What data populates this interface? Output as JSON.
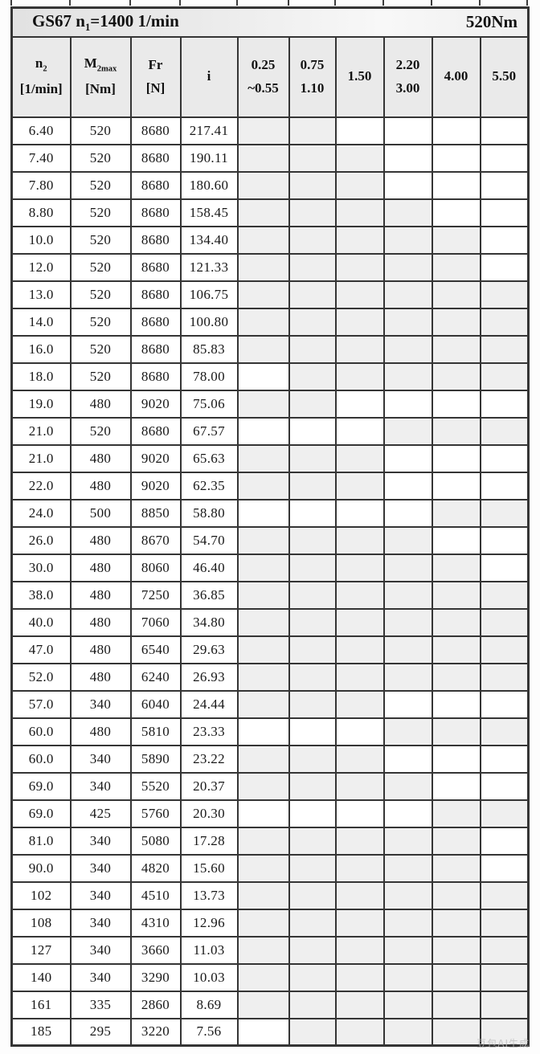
{
  "title": {
    "prefix": "GS67 n",
    "sub": "1",
    "suffix": "=1400 1/min",
    "torque": "520Nm"
  },
  "header": {
    "cols": [
      {
        "line1": "n",
        "sub": "2",
        "line2": "[1/min]"
      },
      {
        "line1": "M",
        "sub": "2max",
        "line2": "[Nm]"
      },
      {
        "line1": "Fr",
        "sub": "",
        "line2": "[N]"
      },
      {
        "line1": "i",
        "sub": "",
        "line2": ""
      },
      {
        "line1": "0.25",
        "sub": "",
        "line2": "~0.55"
      },
      {
        "line1": "0.75",
        "sub": "",
        "line2": "1.10"
      },
      {
        "line1": "1.50",
        "sub": "",
        "line2": ""
      },
      {
        "line1": "2.20",
        "sub": "",
        "line2": "3.00"
      },
      {
        "line1": "4.00",
        "sub": "",
        "line2": ""
      },
      {
        "line1": "5.50",
        "sub": "",
        "line2": ""
      }
    ]
  },
  "rows": [
    {
      "n2": "6.40",
      "m2max": "520",
      "fr": "8680",
      "i": "217.41",
      "avail": [
        1,
        1,
        0,
        0,
        0,
        0
      ]
    },
    {
      "n2": "7.40",
      "m2max": "520",
      "fr": "8680",
      "i": "190.11",
      "avail": [
        1,
        1,
        1,
        0,
        0,
        0
      ]
    },
    {
      "n2": "7.80",
      "m2max": "520",
      "fr": "8680",
      "i": "180.60",
      "avail": [
        1,
        1,
        1,
        0,
        0,
        0
      ]
    },
    {
      "n2": "8.80",
      "m2max": "520",
      "fr": "8680",
      "i": "158.45",
      "avail": [
        1,
        1,
        1,
        1,
        0,
        0
      ]
    },
    {
      "n2": "10.0",
      "m2max": "520",
      "fr": "8680",
      "i": "134.40",
      "avail": [
        1,
        1,
        1,
        1,
        1,
        0
      ]
    },
    {
      "n2": "12.0",
      "m2max": "520",
      "fr": "8680",
      "i": "121.33",
      "avail": [
        1,
        1,
        1,
        1,
        1,
        0
      ]
    },
    {
      "n2": "13.0",
      "m2max": "520",
      "fr": "8680",
      "i": "106.75",
      "avail": [
        1,
        1,
        1,
        1,
        1,
        1
      ]
    },
    {
      "n2": "14.0",
      "m2max": "520",
      "fr": "8680",
      "i": "100.80",
      "avail": [
        1,
        1,
        1,
        1,
        1,
        1
      ]
    },
    {
      "n2": "16.0",
      "m2max": "520",
      "fr": "8680",
      "i": "85.83",
      "avail": [
        1,
        1,
        1,
        1,
        1,
        1
      ]
    },
    {
      "n2": "18.0",
      "m2max": "520",
      "fr": "8680",
      "i": "78.00",
      "avail": [
        0,
        1,
        1,
        1,
        1,
        1
      ]
    },
    {
      "n2": "19.0",
      "m2max": "480",
      "fr": "9020",
      "i": "75.06",
      "avail": [
        1,
        1,
        0,
        0,
        0,
        0
      ]
    },
    {
      "n2": "21.0",
      "m2max": "520",
      "fr": "8680",
      "i": "67.57",
      "avail": [
        0,
        0,
        0,
        1,
        1,
        1
      ]
    },
    {
      "n2": "21.0",
      "m2max": "480",
      "fr": "9020",
      "i": "65.63",
      "avail": [
        1,
        1,
        1,
        0,
        0,
        0
      ]
    },
    {
      "n2": "22.0",
      "m2max": "480",
      "fr": "9020",
      "i": "62.35",
      "avail": [
        1,
        1,
        1,
        0,
        0,
        0
      ]
    },
    {
      "n2": "24.0",
      "m2max": "500",
      "fr": "8850",
      "i": "58.80",
      "avail": [
        0,
        0,
        0,
        0,
        1,
        1
      ]
    },
    {
      "n2": "26.0",
      "m2max": "480",
      "fr": "8670",
      "i": "54.70",
      "avail": [
        1,
        1,
        1,
        1,
        0,
        0
      ]
    },
    {
      "n2": "30.0",
      "m2max": "480",
      "fr": "8060",
      "i": "46.40",
      "avail": [
        1,
        1,
        1,
        1,
        1,
        0
      ]
    },
    {
      "n2": "38.0",
      "m2max": "480",
      "fr": "7250",
      "i": "36.85",
      "avail": [
        1,
        1,
        1,
        1,
        1,
        1
      ]
    },
    {
      "n2": "40.0",
      "m2max": "480",
      "fr": "7060",
      "i": "34.80",
      "avail": [
        1,
        1,
        1,
        1,
        1,
        1
      ]
    },
    {
      "n2": "47.0",
      "m2max": "480",
      "fr": "6540",
      "i": "29.63",
      "avail": [
        1,
        1,
        1,
        1,
        1,
        1
      ]
    },
    {
      "n2": "52.0",
      "m2max": "480",
      "fr": "6240",
      "i": "26.93",
      "avail": [
        1,
        1,
        1,
        1,
        1,
        1
      ]
    },
    {
      "n2": "57.0",
      "m2max": "340",
      "fr": "6040",
      "i": "24.44",
      "avail": [
        1,
        1,
        1,
        0,
        0,
        0
      ]
    },
    {
      "n2": "60.0",
      "m2max": "480",
      "fr": "5810",
      "i": "23.33",
      "avail": [
        0,
        0,
        0,
        1,
        1,
        1
      ]
    },
    {
      "n2": "60.0",
      "m2max": "340",
      "fr": "5890",
      "i": "23.22",
      "avail": [
        1,
        1,
        1,
        0,
        0,
        0
      ]
    },
    {
      "n2": "69.0",
      "m2max": "340",
      "fr": "5520",
      "i": "20.37",
      "avail": [
        1,
        1,
        1,
        1,
        0,
        0
      ]
    },
    {
      "n2": "69.0",
      "m2max": "425",
      "fr": "5760",
      "i": "20.30",
      "avail": [
        0,
        0,
        0,
        0,
        1,
        1
      ]
    },
    {
      "n2": "81.0",
      "m2max": "340",
      "fr": "5080",
      "i": "17.28",
      "avail": [
        1,
        1,
        1,
        1,
        1,
        0
      ]
    },
    {
      "n2": "90.0",
      "m2max": "340",
      "fr": "4820",
      "i": "15.60",
      "avail": [
        1,
        1,
        1,
        1,
        1,
        0
      ]
    },
    {
      "n2": "102",
      "m2max": "340",
      "fr": "4510",
      "i": "13.73",
      "avail": [
        1,
        1,
        1,
        1,
        1,
        1
      ]
    },
    {
      "n2": "108",
      "m2max": "340",
      "fr": "4310",
      "i": "12.96",
      "avail": [
        1,
        1,
        1,
        1,
        1,
        1
      ]
    },
    {
      "n2": "127",
      "m2max": "340",
      "fr": "3660",
      "i": "11.03",
      "avail": [
        1,
        1,
        1,
        1,
        1,
        1
      ]
    },
    {
      "n2": "140",
      "m2max": "340",
      "fr": "3290",
      "i": "10.03",
      "avail": [
        1,
        1,
        1,
        1,
        1,
        1
      ]
    },
    {
      "n2": "161",
      "m2max": "335",
      "fr": "2860",
      "i": "8.69",
      "avail": [
        1,
        1,
        1,
        1,
        1,
        1
      ]
    },
    {
      "n2": "185",
      "m2max": "295",
      "fr": "3220",
      "i": "7.56",
      "avail": [
        0,
        1,
        1,
        1,
        1,
        1
      ]
    }
  ],
  "watermark": "豆包AI生成",
  "colors": {
    "shaded_cell": "#efefef",
    "header_bg": "#eaeaea",
    "border": "#353535"
  }
}
